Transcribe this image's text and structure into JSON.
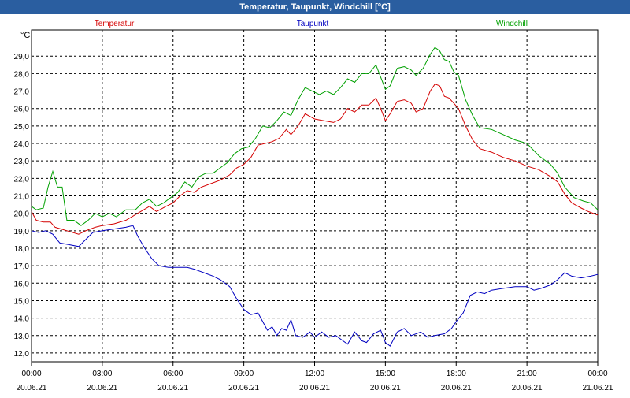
{
  "window": {
    "title": "Temperatur, Taupunkt, Windchill [°C]"
  },
  "chart_data": {
    "type": "line",
    "ylabel": "°C",
    "ylim": [
      11.5,
      30.5
    ],
    "yticks": [
      "12,0",
      "13,0",
      "14,0",
      "15,0",
      "16,0",
      "17,0",
      "18,0",
      "19,0",
      "20,0",
      "21,0",
      "22,0",
      "23,0",
      "24,0",
      "25,0",
      "26,0",
      "27,0",
      "28,0",
      "29,0"
    ],
    "ytick_values": [
      12,
      13,
      14,
      15,
      16,
      17,
      18,
      19,
      20,
      21,
      22,
      23,
      24,
      25,
      26,
      27,
      28,
      29
    ],
    "xlim": [
      0,
      24
    ],
    "x_ticks": [
      {
        "x": 0,
        "time": "00:00",
        "date": "20.06.21"
      },
      {
        "x": 3,
        "time": "03:00",
        "date": "20.06.21"
      },
      {
        "x": 6,
        "time": "06:00",
        "date": "20.06.21"
      },
      {
        "x": 9,
        "time": "09:00",
        "date": "20.06.21"
      },
      {
        "x": 12,
        "time": "12:00",
        "date": "20.06.21"
      },
      {
        "x": 15,
        "time": "15:00",
        "date": "20.06.21"
      },
      {
        "x": 18,
        "time": "18:00",
        "date": "20.06.21"
      },
      {
        "x": 21,
        "time": "21:00",
        "date": "20.06.21"
      },
      {
        "x": 24,
        "time": "00:00",
        "date": "21.06.21"
      }
    ],
    "grid": true,
    "legend_placement": "top",
    "series": [
      {
        "name": "Temperatur",
        "color": "#d40000",
        "points": [
          [
            0,
            20.1
          ],
          [
            0.2,
            19.6
          ],
          [
            0.5,
            19.5
          ],
          [
            0.8,
            19.5
          ],
          [
            1.0,
            19.2
          ],
          [
            1.5,
            19.0
          ],
          [
            2.0,
            18.8
          ],
          [
            2.3,
            19.0
          ],
          [
            2.7,
            19.2
          ],
          [
            3.0,
            19.3
          ],
          [
            3.5,
            19.4
          ],
          [
            4.0,
            19.6
          ],
          [
            4.5,
            20.0
          ],
          [
            5.0,
            20.4
          ],
          [
            5.3,
            20.1
          ],
          [
            5.7,
            20.4
          ],
          [
            6.0,
            20.6
          ],
          [
            6.3,
            21.0
          ],
          [
            6.6,
            21.3
          ],
          [
            6.9,
            21.2
          ],
          [
            7.2,
            21.5
          ],
          [
            7.6,
            21.7
          ],
          [
            8.0,
            21.9
          ],
          [
            8.4,
            22.2
          ],
          [
            8.7,
            22.6
          ],
          [
            9.0,
            22.8
          ],
          [
            9.3,
            23.2
          ],
          [
            9.6,
            23.9
          ],
          [
            9.9,
            24.0
          ],
          [
            10.2,
            24.1
          ],
          [
            10.5,
            24.3
          ],
          [
            10.8,
            24.8
          ],
          [
            11.0,
            24.5
          ],
          [
            11.3,
            25.0
          ],
          [
            11.6,
            25.7
          ],
          [
            12.0,
            25.4
          ],
          [
            12.4,
            25.3
          ],
          [
            12.8,
            25.2
          ],
          [
            13.1,
            25.4
          ],
          [
            13.4,
            26.0
          ],
          [
            13.7,
            25.8
          ],
          [
            14.0,
            26.2
          ],
          [
            14.3,
            26.2
          ],
          [
            14.6,
            26.6
          ],
          [
            14.8,
            26.0
          ],
          [
            15.0,
            25.3
          ],
          [
            15.2,
            25.7
          ],
          [
            15.5,
            26.4
          ],
          [
            15.8,
            26.5
          ],
          [
            16.1,
            26.3
          ],
          [
            16.3,
            25.8
          ],
          [
            16.6,
            26.0
          ],
          [
            16.9,
            27.0
          ],
          [
            17.1,
            27.4
          ],
          [
            17.3,
            27.3
          ],
          [
            17.5,
            26.7
          ],
          [
            17.7,
            26.6
          ],
          [
            17.9,
            26.3
          ],
          [
            18.1,
            26.0
          ],
          [
            18.4,
            25.0
          ],
          [
            18.7,
            24.2
          ],
          [
            19.0,
            23.7
          ],
          [
            19.5,
            23.5
          ],
          [
            20.0,
            23.2
          ],
          [
            20.5,
            23.0
          ],
          [
            21.0,
            22.7
          ],
          [
            21.5,
            22.5
          ],
          [
            22.0,
            22.1
          ],
          [
            22.3,
            21.8
          ],
          [
            22.6,
            21.1
          ],
          [
            22.9,
            20.6
          ],
          [
            23.3,
            20.3
          ],
          [
            23.6,
            20.1
          ],
          [
            24.0,
            19.9
          ]
        ]
      },
      {
        "name": "Taupunkt",
        "color": "#0000c0",
        "points": [
          [
            0,
            19.0
          ],
          [
            0.3,
            18.9
          ],
          [
            0.6,
            19.0
          ],
          [
            0.9,
            18.8
          ],
          [
            1.2,
            18.3
          ],
          [
            1.6,
            18.2
          ],
          [
            2.0,
            18.1
          ],
          [
            2.3,
            18.5
          ],
          [
            2.6,
            18.9
          ],
          [
            3.0,
            19.0
          ],
          [
            3.5,
            19.1
          ],
          [
            4.0,
            19.2
          ],
          [
            4.3,
            19.3
          ],
          [
            4.5,
            18.7
          ],
          [
            4.8,
            18.0
          ],
          [
            5.1,
            17.4
          ],
          [
            5.4,
            17.0
          ],
          [
            5.8,
            16.9
          ],
          [
            6.2,
            16.9
          ],
          [
            6.6,
            16.9
          ],
          [
            6.9,
            16.8
          ],
          [
            7.3,
            16.6
          ],
          [
            7.7,
            16.4
          ],
          [
            8.0,
            16.2
          ],
          [
            8.4,
            15.8
          ],
          [
            8.7,
            15.1
          ],
          [
            9.0,
            14.5
          ],
          [
            9.3,
            14.2
          ],
          [
            9.6,
            14.3
          ],
          [
            9.8,
            13.8
          ],
          [
            10.0,
            13.3
          ],
          [
            10.2,
            13.5
          ],
          [
            10.4,
            13.0
          ],
          [
            10.6,
            13.4
          ],
          [
            10.8,
            13.3
          ],
          [
            11.0,
            13.9
          ],
          [
            11.2,
            13.0
          ],
          [
            11.5,
            12.9
          ],
          [
            11.8,
            13.2
          ],
          [
            12.0,
            12.9
          ],
          [
            12.3,
            13.2
          ],
          [
            12.6,
            12.9
          ],
          [
            12.9,
            13.0
          ],
          [
            13.2,
            12.7
          ],
          [
            13.4,
            12.5
          ],
          [
            13.7,
            13.2
          ],
          [
            14.0,
            12.7
          ],
          [
            14.2,
            12.6
          ],
          [
            14.5,
            13.1
          ],
          [
            14.8,
            13.3
          ],
          [
            15.0,
            12.6
          ],
          [
            15.2,
            12.4
          ],
          [
            15.5,
            13.2
          ],
          [
            15.8,
            13.4
          ],
          [
            16.1,
            13.0
          ],
          [
            16.5,
            13.2
          ],
          [
            16.8,
            12.9
          ],
          [
            17.1,
            13.0
          ],
          [
            17.5,
            13.1
          ],
          [
            17.8,
            13.4
          ],
          [
            18.0,
            13.8
          ],
          [
            18.3,
            14.3
          ],
          [
            18.6,
            15.3
          ],
          [
            18.9,
            15.5
          ],
          [
            19.2,
            15.4
          ],
          [
            19.5,
            15.6
          ],
          [
            20.0,
            15.7
          ],
          [
            20.5,
            15.8
          ],
          [
            21.0,
            15.8
          ],
          [
            21.3,
            15.6
          ],
          [
            21.6,
            15.7
          ],
          [
            22.0,
            15.9
          ],
          [
            22.3,
            16.2
          ],
          [
            22.6,
            16.6
          ],
          [
            22.9,
            16.4
          ],
          [
            23.3,
            16.3
          ],
          [
            23.7,
            16.4
          ],
          [
            24.0,
            16.5
          ]
        ]
      },
      {
        "name": "Windchill",
        "color": "#00a000",
        "points": [
          [
            0,
            20.4
          ],
          [
            0.2,
            20.2
          ],
          [
            0.5,
            20.3
          ],
          [
            0.7,
            21.5
          ],
          [
            0.9,
            22.4
          ],
          [
            1.1,
            21.5
          ],
          [
            1.3,
            21.5
          ],
          [
            1.5,
            19.6
          ],
          [
            1.8,
            19.6
          ],
          [
            2.1,
            19.3
          ],
          [
            2.4,
            19.6
          ],
          [
            2.7,
            20.0
          ],
          [
            3.0,
            19.8
          ],
          [
            3.3,
            20.0
          ],
          [
            3.6,
            19.8
          ],
          [
            4.0,
            20.2
          ],
          [
            4.4,
            20.2
          ],
          [
            4.7,
            20.6
          ],
          [
            5.0,
            20.8
          ],
          [
            5.3,
            20.4
          ],
          [
            5.6,
            20.6
          ],
          [
            5.9,
            20.9
          ],
          [
            6.2,
            21.2
          ],
          [
            6.5,
            21.8
          ],
          [
            6.8,
            21.5
          ],
          [
            7.1,
            22.1
          ],
          [
            7.4,
            22.3
          ],
          [
            7.7,
            22.3
          ],
          [
            8.0,
            22.6
          ],
          [
            8.3,
            22.9
          ],
          [
            8.6,
            23.4
          ],
          [
            8.9,
            23.7
          ],
          [
            9.2,
            23.8
          ],
          [
            9.5,
            24.3
          ],
          [
            9.8,
            25.0
          ],
          [
            10.1,
            24.9
          ],
          [
            10.4,
            25.3
          ],
          [
            10.7,
            25.8
          ],
          [
            11.0,
            25.6
          ],
          [
            11.3,
            26.5
          ],
          [
            11.6,
            27.2
          ],
          [
            11.9,
            27.0
          ],
          [
            12.2,
            26.8
          ],
          [
            12.5,
            27.0
          ],
          [
            12.8,
            26.8
          ],
          [
            13.1,
            27.2
          ],
          [
            13.4,
            27.7
          ],
          [
            13.7,
            27.5
          ],
          [
            14.0,
            28.0
          ],
          [
            14.3,
            28.0
          ],
          [
            14.6,
            28.5
          ],
          [
            14.8,
            27.8
          ],
          [
            15.0,
            27.1
          ],
          [
            15.2,
            27.3
          ],
          [
            15.5,
            28.3
          ],
          [
            15.8,
            28.4
          ],
          [
            16.1,
            28.2
          ],
          [
            16.3,
            27.9
          ],
          [
            16.6,
            28.3
          ],
          [
            16.9,
            29.1
          ],
          [
            17.1,
            29.5
          ],
          [
            17.3,
            29.3
          ],
          [
            17.5,
            28.8
          ],
          [
            17.7,
            28.7
          ],
          [
            17.9,
            28.1
          ],
          [
            18.1,
            27.9
          ],
          [
            18.4,
            26.5
          ],
          [
            18.7,
            25.6
          ],
          [
            19.0,
            24.9
          ],
          [
            19.5,
            24.8
          ],
          [
            20.0,
            24.5
          ],
          [
            20.5,
            24.2
          ],
          [
            21.0,
            24.0
          ],
          [
            21.5,
            23.3
          ],
          [
            22.0,
            22.8
          ],
          [
            22.3,
            22.3
          ],
          [
            22.6,
            21.5
          ],
          [
            23.0,
            20.9
          ],
          [
            23.4,
            20.7
          ],
          [
            23.7,
            20.6
          ],
          [
            24.0,
            20.2
          ]
        ]
      }
    ]
  }
}
